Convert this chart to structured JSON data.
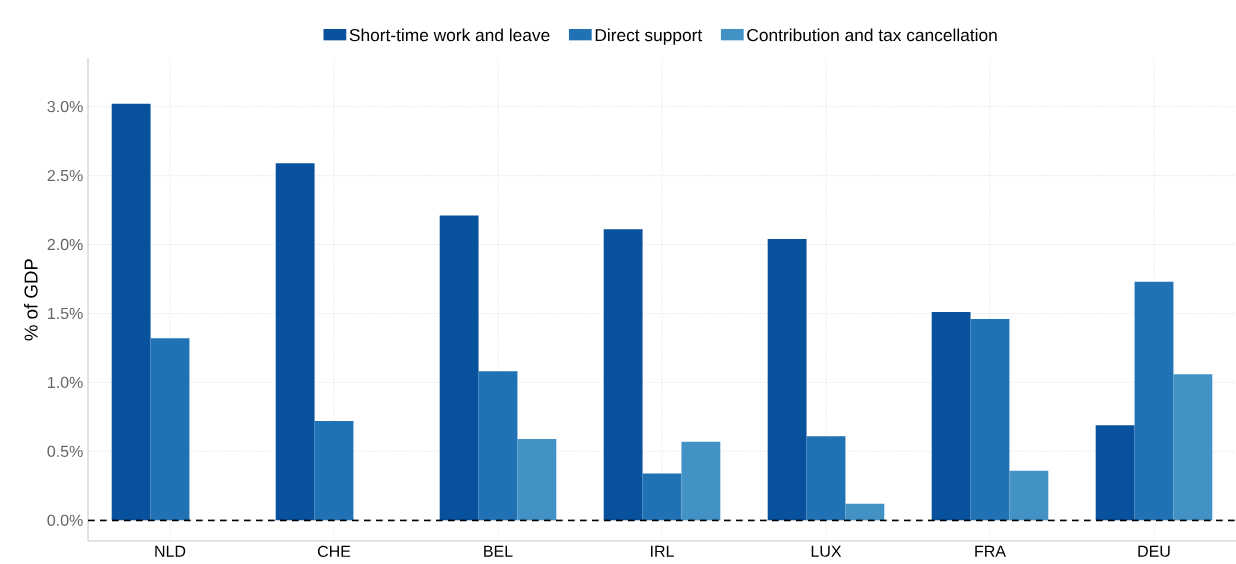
{
  "chart_data": {
    "type": "bar",
    "ylabel": "% of GDP",
    "categories": [
      "NLD",
      "CHE",
      "BEL",
      "IRL",
      "LUX",
      "FRA",
      "DEU"
    ],
    "series": [
      {
        "name": "Short-time work and leave",
        "color": "#08519c",
        "values": [
          3.02,
          2.59,
          2.21,
          2.11,
          2.04,
          1.51,
          0.69
        ]
      },
      {
        "name": "Direct support",
        "color": "#2171b5",
        "values": [
          1.32,
          0.72,
          1.08,
          0.34,
          0.61,
          1.46,
          1.73
        ]
      },
      {
        "name": "Contribution and tax cancellation",
        "color": "#4292c6",
        "values": [
          null,
          null,
          0.59,
          0.57,
          0.12,
          0.36,
          1.06
        ]
      }
    ],
    "ylim": [
      -0.15,
      3.35
    ],
    "yticks": [
      {
        "value": 0,
        "label": "0.0%"
      },
      {
        "value": 0.5,
        "label": "0.5%"
      },
      {
        "value": 1,
        "label": "1.0%"
      },
      {
        "value": 1.5,
        "label": "1.5%"
      },
      {
        "value": 2,
        "label": "2.0%"
      },
      {
        "value": 2.5,
        "label": "2.5%"
      },
      {
        "value": 3,
        "label": "3.0%"
      }
    ],
    "ref_lines": [
      {
        "axis": "y",
        "value": 0,
        "color": "#000000",
        "line_style": "dashed"
      }
    ],
    "grid": true,
    "legend": "top"
  }
}
